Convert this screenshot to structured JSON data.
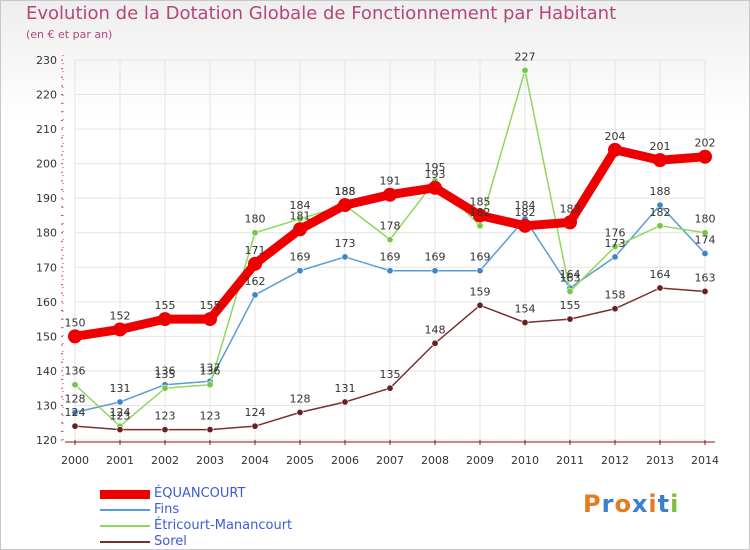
{
  "title": "Evolution de la Dotation Globale de Fonctionnement par Habitant",
  "subtitle": "(en € et par an)",
  "logo": "Proxiti",
  "colors": {
    "title": "#b5467b",
    "legend_text": "#3b5bd8",
    "axis": "#7a1f1f",
    "grid": "#e4e4e4",
    "logo_letters": [
      "#e57c21",
      "#3a7fd0",
      "#e57c21",
      "#3a7fd0",
      "#e57c21",
      "#3a7fd0",
      "#7fbf3a"
    ]
  },
  "chart_data": {
    "type": "line",
    "title": "Evolution de la Dotation Globale de Fonctionnement par Habitant",
    "subtitle": "(en € et par an)",
    "xlabel": "",
    "ylabel": "",
    "ylim": [
      120,
      230
    ],
    "yticks": [
      120,
      130,
      140,
      150,
      160,
      170,
      180,
      190,
      200,
      210,
      220,
      230
    ],
    "grid": true,
    "x": [
      2000,
      2001,
      2002,
      2003,
      2004,
      2005,
      2006,
      2007,
      2008,
      2009,
      2010,
      2011,
      2012,
      2013,
      2014
    ],
    "series": [
      {
        "name": "ÉQUANCOURT",
        "color": "#ee0000",
        "thick": true,
        "values": [
          150,
          152,
          155,
          155,
          171,
          181,
          188,
          191,
          193,
          185,
          182,
          183,
          204,
          201,
          202
        ]
      },
      {
        "name": "Fins",
        "color": "#5b9bd5",
        "marker": "#3f86c8",
        "thick": false,
        "values": [
          128,
          131,
          136,
          137,
          162,
          169,
          173,
          169,
          169,
          169,
          184,
          164,
          173,
          188,
          174
        ]
      },
      {
        "name": "Étricourt-Manancourt",
        "color": "#8fd85e",
        "marker": "#74c743",
        "thick": false,
        "values": [
          136,
          124,
          135,
          136,
          180,
          184,
          188,
          178,
          195,
          182,
          227,
          163,
          176,
          182,
          180
        ]
      },
      {
        "name": "Sorel",
        "color": "#7a2f2f",
        "marker": "#6b1f1f",
        "thick": false,
        "values": [
          124,
          123,
          123,
          123,
          124,
          128,
          131,
          135,
          148,
          159,
          154,
          155,
          158,
          164,
          163
        ]
      }
    ]
  }
}
